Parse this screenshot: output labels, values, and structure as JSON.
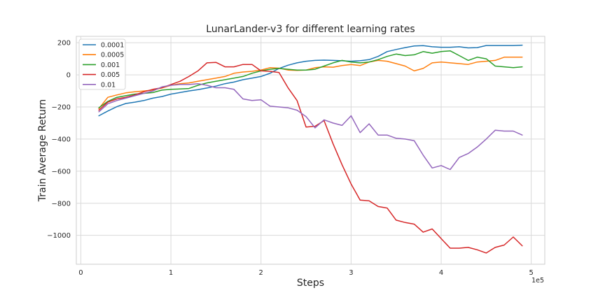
{
  "chart_data": {
    "type": "line",
    "title": "LunarLander-v3 for different learning rates",
    "xlabel": "Steps",
    "ylabel": "Train Average Return",
    "x_offset_label": "1e5",
    "xlim": [
      -0.05,
      5.15
    ],
    "ylim": [
      -1180,
      240
    ],
    "xticks": [
      0,
      1,
      2,
      3,
      4,
      5
    ],
    "xtick_labels": [
      "0",
      "1",
      "2",
      "3",
      "4",
      "5"
    ],
    "yticks": [
      200,
      0,
      -200,
      -400,
      -600,
      -800,
      -1000
    ],
    "ytick_labels": [
      "200",
      "0",
      "−200",
      "−400",
      "−600",
      "−800",
      "−1000"
    ],
    "grid": true,
    "legend_position": "top-left",
    "x": [
      0.2,
      0.3,
      0.4,
      0.5,
      0.6,
      0.7,
      0.8,
      0.9,
      1.0,
      1.1,
      1.2,
      1.3,
      1.4,
      1.5,
      1.6,
      1.7,
      1.8,
      1.9,
      2.0,
      2.1,
      2.2,
      2.3,
      2.4,
      2.5,
      2.6,
      2.7,
      2.8,
      2.9,
      3.0,
      3.1,
      3.2,
      3.3,
      3.4,
      3.5,
      3.6,
      3.7,
      3.8,
      3.9,
      4.0,
      4.1,
      4.2,
      4.3,
      4.4,
      4.5,
      4.6,
      4.7,
      4.8,
      4.9
    ],
    "series": [
      {
        "name": "0.0001",
        "color": "#1f77b4",
        "values": [
          -255,
          -225,
          -198,
          -178,
          -170,
          -160,
          -145,
          -135,
          -120,
          -110,
          -100,
          -92,
          -82,
          -70,
          -55,
          -45,
          -30,
          -20,
          -10,
          10,
          40,
          60,
          75,
          85,
          90,
          92,
          90,
          88,
          85,
          88,
          95,
          115,
          145,
          158,
          170,
          180,
          182,
          175,
          172,
          172,
          175,
          168,
          170,
          183,
          183,
          183,
          183,
          185
        ]
      },
      {
        "name": "0.0005",
        "color": "#ff7f0e",
        "values": [
          -210,
          -140,
          -125,
          -112,
          -105,
          -100,
          -95,
          -82,
          -65,
          -55,
          -50,
          -40,
          -30,
          -20,
          -10,
          10,
          18,
          22,
          30,
          45,
          42,
          30,
          28,
          30,
          45,
          50,
          48,
          58,
          65,
          58,
          80,
          90,
          85,
          70,
          55,
          25,
          40,
          75,
          80,
          75,
          70,
          65,
          80,
          85,
          90,
          110,
          110,
          110
        ]
      },
      {
        "name": "0.001",
        "color": "#2ca02c",
        "values": [
          -205,
          -165,
          -140,
          -130,
          -120,
          -115,
          -110,
          -95,
          -90,
          -88,
          -85,
          -65,
          -50,
          -40,
          -30,
          -20,
          -10,
          10,
          25,
          35,
          40,
          35,
          30,
          30,
          35,
          55,
          75,
          90,
          80,
          75,
          80,
          95,
          115,
          130,
          120,
          125,
          145,
          135,
          145,
          150,
          120,
          90,
          110,
          100,
          55,
          50,
          45,
          50
        ]
      },
      {
        "name": "0.005",
        "color": "#d62728",
        "values": [
          -220,
          -170,
          -150,
          -140,
          -125,
          -105,
          -90,
          -80,
          -60,
          -40,
          -10,
          25,
          75,
          78,
          50,
          50,
          65,
          65,
          25,
          22,
          15,
          -80,
          -160,
          -325,
          -320,
          -285,
          -430,
          -560,
          -680,
          -780,
          -785,
          -820,
          -830,
          -905,
          -920,
          -930,
          -980,
          -960,
          -1020,
          -1080,
          -1080,
          -1075,
          -1090,
          -1110,
          -1075,
          -1060,
          -1010,
          -1065
        ]
      },
      {
        "name": "0.01",
        "color": "#9467bd",
        "values": [
          -230,
          -180,
          -160,
          -145,
          -130,
          -115,
          -100,
          -75,
          -65,
          -60,
          -60,
          -55,
          -65,
          -80,
          -80,
          -90,
          -150,
          -160,
          -155,
          -195,
          -200,
          -205,
          -220,
          -260,
          -330,
          -280,
          -300,
          -315,
          -255,
          -360,
          -305,
          -375,
          -375,
          -395,
          -400,
          -410,
          -500,
          -580,
          -565,
          -590,
          -515,
          -490,
          -450,
          -400,
          -345,
          -350,
          -350,
          -375
        ]
      }
    ]
  }
}
